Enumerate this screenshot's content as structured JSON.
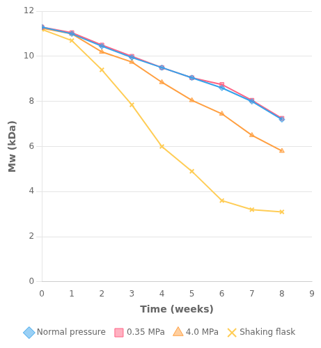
{
  "chart_data": {
    "type": "line",
    "xlabel": "Time (weeks)",
    "ylabel": "Mw (kDa)",
    "x": [
      0,
      1,
      2,
      3,
      4,
      5,
      6,
      7,
      8
    ],
    "xlim": [
      0,
      9
    ],
    "xticks": [
      0,
      1,
      2,
      3,
      4,
      5,
      6,
      7,
      8,
      9
    ],
    "ylim": [
      0,
      12
    ],
    "yticks": [
      0,
      2,
      4,
      6,
      8,
      10,
      12
    ],
    "grid": "y",
    "legend": "bottom",
    "series": [
      {
        "name": "Normal pressure",
        "marker": "diamond",
        "values": [
          11.3,
          11.0,
          10.45,
          9.95,
          9.5,
          9.05,
          8.6,
          8.0,
          7.2
        ]
      },
      {
        "name": "0.35 MPa",
        "marker": "square",
        "values": [
          11.3,
          11.05,
          10.5,
          10.0,
          9.5,
          9.05,
          8.75,
          8.05,
          7.25
        ]
      },
      {
        "name": "4.0 MPa",
        "marker": "triangle",
        "values": [
          11.25,
          11.0,
          10.2,
          9.75,
          8.85,
          8.05,
          7.45,
          6.5,
          5.8
        ]
      },
      {
        "name": "Shaking flask",
        "marker": "x",
        "values": [
          11.2,
          10.7,
          9.4,
          7.85,
          6.0,
          4.9,
          3.6,
          3.2,
          3.1
        ]
      }
    ]
  }
}
